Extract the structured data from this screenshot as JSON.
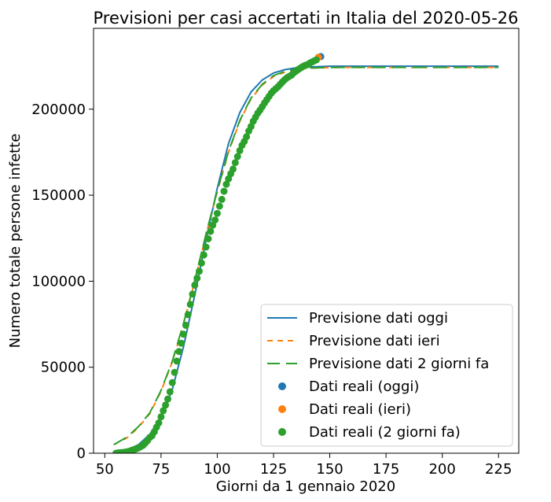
{
  "chart_data": {
    "type": "scatter",
    "title": "Previsioni per casi accertati in Italia del 2020-05-26",
    "xlabel": "Giorni da 1 gennaio 2020",
    "ylabel": "Numero totale persone infette",
    "xlim": [
      45,
      234
    ],
    "ylim": [
      0,
      247000
    ],
    "xticks": [
      50,
      75,
      100,
      125,
      150,
      175,
      200,
      225
    ],
    "yticks": [
      0,
      50000,
      100000,
      150000,
      200000
    ],
    "grid": false,
    "legend_position": "lower-right",
    "colors": {
      "blue": "#1f77b4",
      "orange": "#ff7f0e",
      "green": "#2ca02c"
    },
    "legend": [
      {
        "label": "Previsione dati oggi",
        "kind": "line",
        "color": "#1f77b4",
        "dash": "solid"
      },
      {
        "label": "Previsione dati ieri",
        "kind": "line",
        "color": "#ff7f0e",
        "dash": "short"
      },
      {
        "label": "Previsione dati 2 giorni fa",
        "kind": "line",
        "color": "#2ca02c",
        "dash": "long"
      },
      {
        "label": "Dati reali (oggi)",
        "kind": "marker",
        "color": "#1f77b4"
      },
      {
        "label": "Dati reali (ieri)",
        "kind": "marker",
        "color": "#ff7f0e"
      },
      {
        "label": "Dati reali (2 giorni fa)",
        "kind": "marker",
        "color": "#2ca02c"
      }
    ],
    "forecast_lines": [
      {
        "name": "Previsione dati oggi",
        "color": "#1f77b4",
        "dash": "solid",
        "x": [
          54,
          60,
          65,
          70,
          75,
          80,
          85,
          90,
          95,
          100,
          105,
          110,
          115,
          120,
          125,
          130,
          135,
          140,
          150,
          160,
          175,
          200,
          225
        ],
        "y": [
          0,
          2000,
          5000,
          11000,
          21000,
          37000,
          62000,
          92000,
          124000,
          154000,
          180000,
          198000,
          210000,
          217000,
          221000,
          223000,
          224000,
          224500,
          225000,
          225000,
          225000,
          225000,
          225000
        ]
      },
      {
        "name": "Previsione dati ieri",
        "color": "#ff7f0e",
        "dash": "short",
        "x": [
          54,
          60,
          65,
          70,
          75,
          80,
          85,
          90,
          95,
          100,
          105,
          110,
          115,
          120,
          125,
          130,
          135,
          140,
          150,
          160,
          175,
          200,
          225
        ],
        "y": [
          5000,
          9000,
          15000,
          23000,
          36000,
          53000,
          75000,
          100000,
          127000,
          152000,
          175000,
          193000,
          206000,
          214000,
          219000,
          221500,
          223000,
          223800,
          224200,
          224300,
          224300,
          224300,
          224300
        ]
      },
      {
        "name": "Previsione dati 2 giorni fa",
        "color": "#2ca02c",
        "dash": "long",
        "x": [
          54,
          60,
          65,
          70,
          75,
          80,
          85,
          90,
          95,
          100,
          105,
          110,
          115,
          120,
          125,
          130,
          135,
          140,
          150,
          160,
          175,
          200,
          225
        ],
        "y": [
          5000,
          9500,
          15500,
          23500,
          36500,
          53500,
          75500,
          100500,
          127500,
          152500,
          175500,
          193500,
          206500,
          214500,
          219500,
          222000,
          223300,
          223900,
          224200,
          224300,
          224300,
          224300,
          224300
        ]
      }
    ],
    "scatter_series": [
      {
        "name": "Dati reali (oggi)",
        "color": "#1f77b4",
        "x": [
          146
        ],
        "y": [
          230600
        ]
      },
      {
        "name": "Dati reali (ieri)",
        "color": "#ff7f0e",
        "x": [
          145
        ],
        "y": [
          230200
        ]
      },
      {
        "name": "Dati reali (2 giorni fa)",
        "color": "#2ca02c",
        "x": [
          55,
          56,
          57,
          58,
          59,
          60,
          61,
          62,
          63,
          64,
          65,
          66,
          67,
          68,
          69,
          70,
          71,
          72,
          73,
          74,
          75,
          76,
          77,
          78,
          79,
          80,
          81,
          82,
          83,
          84,
          85,
          86,
          87,
          88,
          89,
          90,
          91,
          92,
          93,
          94,
          95,
          96,
          97,
          98,
          99,
          100,
          101,
          102,
          103,
          104,
          105,
          106,
          107,
          108,
          109,
          110,
          111,
          112,
          113,
          114,
          115,
          116,
          117,
          118,
          119,
          120,
          121,
          122,
          123,
          124,
          125,
          126,
          127,
          128,
          129,
          130,
          131,
          132,
          133,
          134,
          135,
          136,
          137,
          138,
          139,
          140,
          141,
          142,
          143,
          144
        ],
        "y": [
          0,
          229,
          322,
          400,
          650,
          888,
          1128,
          1694,
          2036,
          2502,
          3089,
          3858,
          4636,
          5883,
          7375,
          9172,
          10149,
          12462,
          15113,
          17660,
          21157,
          24747,
          27980,
          31506,
          35713,
          41035,
          47021,
          53578,
          59138,
          63927,
          69176,
          74386,
          80539,
          86498,
          92472,
          97689,
          101739,
          105792,
          110574,
          115242,
          119827,
          124632,
          128948,
          132547,
          135586,
          139422,
          143626,
          147577,
          152271,
          156363,
          159516,
          162488,
          165155,
          168941,
          172434,
          175925,
          178972,
          181228,
          183957,
          187327,
          189973,
          192994,
          195351,
          197675,
          199414,
          201505,
          203591,
          205463,
          207428,
          209328,
          210717,
          211938,
          213013,
          214457,
          215858,
          217185,
          218268,
          219070,
          219814,
          221216,
          222104,
          223096,
          223885,
          224760,
          225435,
          225886,
          226699,
          227364,
          228006,
          228658
        ]
      }
    ]
  }
}
